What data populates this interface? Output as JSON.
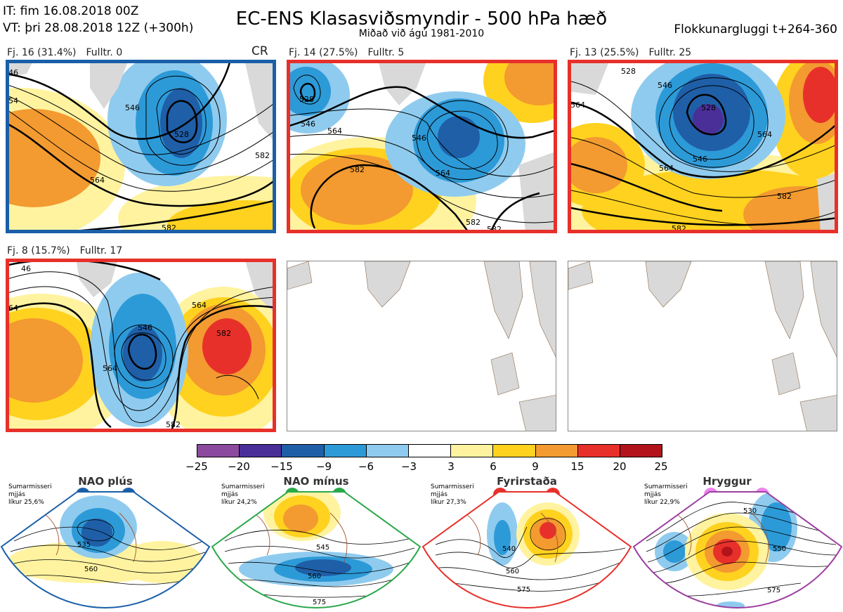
{
  "header": {
    "it_line": "IT: fim 16.08.2018 00Z",
    "vt_line": "VT: þri 28.08.2018 12Z  (+300h)",
    "title": "EC-ENS Klasasviðsmyndir - 500 hPa hæð",
    "subtitle": "Miðað við ágú 1981-2010",
    "window": "Flokkunargluggi t+264-360"
  },
  "clusters": [
    {
      "label": "Fj. 16 (31.4%)",
      "representative": "Fulltr. 0",
      "tag": "CR",
      "frame_color": "#1a5fa8",
      "contours": [
        "46",
        "54",
        "546",
        "528",
        "564",
        "582",
        "582"
      ]
    },
    {
      "label": "Fj. 14 (27.5%)",
      "representative": "Fulltr. 5",
      "tag": "",
      "frame_color": "#e8302a",
      "contours": [
        "528",
        "546",
        "564",
        "546",
        "564",
        "582",
        "582",
        "582"
      ]
    },
    {
      "label": "Fj. 13 (25.5%)",
      "representative": "Fulltr. 25",
      "tag": "",
      "frame_color": "#e8302a",
      "contours": [
        "528",
        "546",
        "528",
        "564",
        "546",
        "564",
        "564",
        "582",
        "582"
      ]
    },
    {
      "label": "Fj. 8 (15.7%)",
      "representative": "Fulltr. 17",
      "tag": "",
      "frame_color": "#e8302a",
      "contours": [
        "46",
        "64",
        "546",
        "564",
        "564",
        "582",
        "582"
      ]
    }
  ],
  "colorbar": {
    "colors": [
      "#8c4a9f",
      "#4a2f98",
      "#1f5fa8",
      "#2d9ad8",
      "#8fcbee",
      "#ffffff",
      "#fff3a0",
      "#ffd21f",
      "#f39a30",
      "#e8302a",
      "#b3141b"
    ],
    "ticks": [
      "−25",
      "−20",
      "−15",
      "−9",
      "−6",
      "−3",
      "3",
      "6",
      "9",
      "15",
      "20",
      "25"
    ]
  },
  "regimes": [
    {
      "name": "NAO plús",
      "season": "Sumarmisseri",
      "period": "mjjás",
      "likelihood": "líkur 25,6%",
      "color": "#1a5fa8",
      "contours": [
        "535",
        "560"
      ]
    },
    {
      "name": "NAO mínus",
      "season": "Sumarmisseri",
      "period": "mjjás",
      "likelihood": "líkur 24,2%",
      "color": "#2aa84a",
      "contours": [
        "545",
        "560",
        "575"
      ]
    },
    {
      "name": "Fyrirstaða",
      "season": "Sumarmisseri",
      "period": "mjjás",
      "likelihood": "líkur 27,3%",
      "color": "#e8302a",
      "contours": [
        "540",
        "560",
        "575"
      ]
    },
    {
      "name": "Hryggur",
      "season": "Sumarmisseri",
      "period": "mjjás",
      "likelihood": "líkur 22,9%",
      "color": "#ee82ee",
      "contours": [
        "530",
        "550",
        "575"
      ]
    }
  ]
}
